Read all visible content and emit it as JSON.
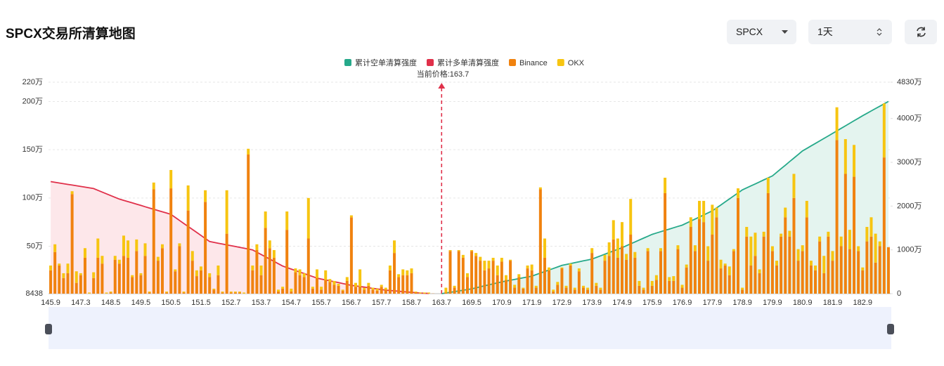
{
  "header": {
    "title": "SPCX交易所清算地图",
    "symbol_select": "SPCX",
    "range_select": "1天"
  },
  "chart_data": {
    "type": "bar",
    "stacked": true,
    "grid": true,
    "current_price": {
      "label": "当前价格:163.7",
      "value": 163.7
    },
    "categories": [
      "145.9",
      null,
      null,
      null,
      null,
      null,
      null,
      "147.3",
      null,
      null,
      null,
      null,
      null,
      null,
      "148.5",
      null,
      null,
      null,
      null,
      null,
      null,
      "149.5",
      null,
      null,
      null,
      null,
      null,
      null,
      "150.5",
      null,
      null,
      null,
      null,
      null,
      null,
      "151.5",
      null,
      null,
      null,
      null,
      null,
      null,
      "152.7",
      null,
      null,
      null,
      null,
      null,
      null,
      "153.7",
      null,
      null,
      null,
      null,
      null,
      null,
      "154.7",
      null,
      null,
      null,
      null,
      null,
      null,
      "155.7",
      null,
      null,
      null,
      null,
      null,
      null,
      "156.7",
      null,
      null,
      null,
      null,
      null,
      null,
      "157.7",
      null,
      null,
      null,
      null,
      null,
      null,
      "158.7",
      null,
      null,
      null,
      null,
      null,
      null,
      "163.7",
      null,
      null,
      null,
      null,
      null,
      null,
      "169.5",
      null,
      null,
      null,
      null,
      null,
      null,
      "170.9",
      null,
      null,
      null,
      null,
      null,
      null,
      "171.9",
      null,
      null,
      null,
      null,
      null,
      null,
      "172.9",
      null,
      null,
      null,
      null,
      null,
      null,
      "173.9",
      null,
      null,
      null,
      null,
      null,
      null,
      "174.9",
      null,
      null,
      null,
      null,
      null,
      null,
      "175.9",
      null,
      null,
      null,
      null,
      null,
      null,
      "176.9",
      null,
      null,
      null,
      null,
      null,
      null,
      "177.9",
      null,
      null,
      null,
      null,
      null,
      null,
      "178.9",
      null,
      null,
      null,
      null,
      null,
      null,
      "179.9",
      null,
      null,
      null,
      null,
      null,
      null,
      "180.9",
      null,
      null,
      null,
      null,
      null,
      null,
      "181.9",
      null,
      null,
      null,
      null,
      null,
      null,
      "182.9",
      null,
      null,
      null,
      null,
      null,
      null
    ],
    "ylim": [
      8438,
      2200000
    ],
    "yticks": [
      {
        "value": 8438,
        "label": "8438"
      },
      {
        "value": 500000,
        "label": "50万"
      },
      {
        "value": 1000000,
        "label": "100万"
      },
      {
        "value": 1500000,
        "label": "150万"
      },
      {
        "value": 2000000,
        "label": "200万"
      },
      {
        "value": 2200000,
        "label": "220万"
      }
    ],
    "y2lim": [
      0,
      48300000
    ],
    "y2ticks": [
      0,
      {
        "value": 10000000,
        "label": "1000万"
      },
      {
        "value": 20000000,
        "label": "2000万"
      },
      {
        "value": 30000000,
        "label": "3000万"
      },
      {
        "value": 40000000,
        "label": "4000万"
      },
      {
        "value": 48300000,
        "label": "4830万"
      }
    ],
    "series": [
      {
        "name": "累计空单清算强度",
        "type": "line",
        "axis": "y2",
        "color": "#26a98a",
        "area_color": "#e4f4ef",
        "values": [
          null,
          null,
          null,
          null,
          null,
          null,
          null,
          null,
          null,
          null,
          null,
          null,
          null,
          null,
          null,
          null,
          null,
          null,
          null,
          null,
          null,
          null,
          null,
          null,
          null,
          null,
          null,
          null,
          null,
          null,
          null,
          null,
          null,
          null,
          null,
          null,
          null,
          null,
          null,
          null,
          null,
          null,
          null,
          null,
          null,
          null,
          null,
          null,
          null,
          null,
          null,
          null,
          null,
          null,
          null,
          null,
          null,
          null,
          null,
          null,
          null,
          null,
          null,
          null,
          null,
          null,
          null,
          null,
          null,
          null,
          null,
          null,
          null,
          null,
          null,
          null,
          null,
          null,
          null,
          null,
          null,
          null,
          null,
          null,
          null,
          null,
          null,
          null,
          null,
          null,
          null,
          0,
          160000,
          310000,
          470000,
          630000,
          790000,
          940000,
          1100000,
          1330000,
          1560000,
          1790000,
          2010000,
          2240000,
          2470000,
          2700000,
          2890000,
          3070000,
          3260000,
          3440000,
          3630000,
          3810000,
          4000000,
          4350000,
          4700000,
          5050000,
          5400000,
          5750000,
          6100000,
          6450000,
          6660000,
          6860000,
          7070000,
          7280000,
          7490000,
          7690000,
          7900000,
          8270000,
          8640000,
          9010000,
          9390000,
          9760000,
          10130000,
          10500000,
          10940000,
          11370000,
          11810000,
          12240000,
          12680000,
          13110000,
          13550000,
          13850000,
          14150000,
          14450000,
          14750000,
          15050000,
          15350000,
          15650000,
          16110000,
          16580000,
          17040000,
          17510000,
          17970000,
          18440000,
          18900000,
          19590000,
          20270000,
          20960000,
          21640000,
          22330000,
          23010000,
          23700000,
          24160000,
          24610000,
          25070000,
          25530000,
          25990000,
          26440000,
          26900000,
          27710000,
          28530000,
          29340000,
          30160000,
          30970000,
          31790000,
          32600000,
          33170000,
          33740000,
          34310000,
          34890000,
          35460000,
          36030000,
          36600000,
          37180000,
          37760000,
          38340000,
          38910000,
          39490000,
          40070000,
          40650000,
          41190000,
          41730000,
          42280000,
          42820000,
          43360000,
          43900000
        ]
      },
      {
        "name": "累计多单清算强度",
        "type": "line",
        "axis": "y2",
        "color": "#e0304a",
        "area_color": "#fde7ea",
        "values": [
          25600000,
          25440000,
          25280000,
          25120000,
          24960000,
          24800000,
          24640000,
          24480000,
          24320000,
          24160000,
          24000000,
          23600000,
          23200000,
          22800000,
          22400000,
          22000000,
          21600000,
          21310000,
          21020000,
          20730000,
          20440000,
          20150000,
          19850000,
          19560000,
          19270000,
          18980000,
          18690000,
          18400000,
          18100000,
          17410000,
          16720000,
          16030000,
          15340000,
          14660000,
          13970000,
          13280000,
          12590000,
          11900000,
          11710000,
          11520000,
          11330000,
          11140000,
          10950000,
          10760000,
          10570000,
          10380000,
          10190000,
          10000000,
          9470000,
          8940000,
          8410000,
          7890000,
          7360000,
          6830000,
          6300000,
          5960000,
          5620000,
          5270000,
          4930000,
          4590000,
          4240000,
          3900000,
          3550000,
          3340000,
          3140000,
          2930000,
          2720000,
          2520000,
          2310000,
          2110000,
          1900000,
          1760000,
          1630000,
          1490000,
          1350000,
          1210000,
          1080000,
          940000,
          800000,
          720000,
          640000,
          560000,
          470000,
          390000,
          310000,
          230000,
          150000,
          100000,
          50000,
          null,
          null,
          null,
          null,
          null,
          null,
          null,
          null,
          null,
          null,
          null,
          null,
          null,
          null,
          null,
          null,
          null,
          null,
          null,
          null,
          null,
          null,
          null,
          null,
          null,
          null,
          null,
          null,
          null,
          null,
          null,
          null,
          null,
          null,
          null,
          null,
          null,
          null,
          null,
          null,
          null,
          null,
          null,
          null,
          null,
          null,
          null,
          null,
          null,
          null,
          null,
          null,
          null,
          null,
          null,
          null,
          null,
          null,
          null,
          null,
          null,
          null,
          null,
          null,
          null,
          null,
          null,
          null,
          null,
          null,
          null,
          null,
          null,
          null,
          null,
          null,
          null,
          null,
          null,
          null,
          null,
          null,
          null,
          null,
          null,
          null,
          null,
          null,
          null,
          null,
          null,
          null,
          null,
          null,
          null,
          null,
          null,
          null,
          null,
          null,
          null,
          null,
          null,
          null,
          null,
          null,
          null
        ]
      },
      {
        "name": "Binance",
        "type": "bar",
        "color": "#f0820f",
        "values": [
          250000,
          440000,
          300000,
          170000,
          220000,
          1040000,
          120000,
          200000,
          380000,
          10000,
          170000,
          380000,
          320000,
          10000,
          20000,
          360000,
          320000,
          400000,
          380000,
          180000,
          450000,
          200000,
          400000,
          20000,
          1090000,
          350000,
          480000,
          20000,
          1100000,
          240000,
          500000,
          20000,
          870000,
          350000,
          190000,
          250000,
          960000,
          180000,
          50000,
          200000,
          20000,
          630000,
          20000,
          20000,
          20000,
          10000,
          1450000,
          250000,
          460000,
          200000,
          690000,
          480000,
          380000,
          30000,
          60000,
          670000,
          30000,
          230000,
          200000,
          180000,
          580000,
          60000,
          170000,
          50000,
          150000,
          130000,
          100000,
          90000,
          40000,
          140000,
          800000,
          80000,
          80000,
          50000,
          90000,
          50000,
          40000,
          80000,
          50000,
          250000,
          430000,
          180000,
          200000,
          200000,
          220000,
          20000,
          10000,
          10000,
          10000,
          10000,
          0,
          0,
          20000,
          450000,
          70000,
          450000,
          380000,
          180000,
          450000,
          400000,
          350000,
          250000,
          270000,
          350000,
          200000,
          340000,
          150000,
          350000,
          70000,
          180000,
          60000,
          270000,
          250000,
          70000,
          1090000,
          380000,
          250000,
          30000,
          100000,
          270000,
          70000,
          300000,
          50000,
          240000,
          70000,
          50000,
          430000,
          90000,
          50000,
          350000,
          400000,
          570000,
          380000,
          500000,
          360000,
          620000,
          380000,
          90000,
          50000,
          450000,
          90000,
          150000,
          450000,
          1050000,
          140000,
          140000,
          470000,
          70000,
          280000,
          700000,
          450000,
          780000,
          750000,
          350000,
          620000,
          800000,
          270000,
          300000,
          200000,
          450000,
          1000000,
          50000,
          600000,
          300000,
          400000,
          220000,
          600000,
          1050000,
          450000,
          300000,
          600000,
          800000,
          600000,
          1000000,
          350000,
          450000,
          800000,
          300000,
          250000,
          550000,
          220000,
          600000,
          350000,
          1600000,
          500000,
          1250000,
          470000,
          1220000,
          450000,
          250000,
          550000,
          600000,
          330000,
          500000,
          1420000,
          490000
        ]
      },
      {
        "name": "OKX",
        "type": "bar",
        "color": "#f7c511",
        "values": [
          50000,
          80000,
          20000,
          50000,
          100000,
          30000,
          120000,
          20000,
          100000,
          10000,
          60000,
          200000,
          80000,
          10000,
          10000,
          40000,
          40000,
          210000,
          180000,
          20000,
          120000,
          20000,
          130000,
          10000,
          70000,
          40000,
          40000,
          10000,
          190000,
          20000,
          30000,
          10000,
          260000,
          100000,
          60000,
          40000,
          120000,
          40000,
          10000,
          100000,
          10000,
          450000,
          10000,
          10000,
          10000,
          10000,
          60000,
          50000,
          60000,
          100000,
          170000,
          80000,
          80000,
          20000,
          20000,
          190000,
          30000,
          40000,
          60000,
          40000,
          420000,
          20000,
          90000,
          30000,
          100000,
          30000,
          40000,
          20000,
          10000,
          40000,
          20000,
          40000,
          180000,
          20000,
          30000,
          20000,
          20000,
          20000,
          20000,
          50000,
          130000,
          30000,
          60000,
          50000,
          50000,
          10000,
          10000,
          10000,
          10000,
          0,
          0,
          0,
          50000,
          10000,
          20000,
          10000,
          30000,
          40000,
          10000,
          30000,
          40000,
          100000,
          80000,
          30000,
          100000,
          40000,
          50000,
          10000,
          30000,
          30000,
          10000,
          30000,
          60000,
          20000,
          20000,
          200000,
          30000,
          20000,
          30000,
          10000,
          20000,
          20000,
          20000,
          30000,
          20000,
          20000,
          50000,
          30000,
          20000,
          60000,
          140000,
          200000,
          200000,
          250000,
          60000,
          370000,
          60000,
          50000,
          20000,
          30000,
          50000,
          50000,
          30000,
          160000,
          40000,
          50000,
          40000,
          30000,
          30000,
          100000,
          60000,
          190000,
          220000,
          150000,
          310000,
          100000,
          90000,
          20000,
          90000,
          20000,
          100000,
          20000,
          100000,
          300000,
          240000,
          40000,
          50000,
          160000,
          50000,
          50000,
          30000,
          100000,
          60000,
          250000,
          120000,
          60000,
          170000,
          50000,
          50000,
          50000,
          180000,
          50000,
          100000,
          340000,
          100000,
          360000,
          200000,
          330000,
          50000,
          30000,
          150000,
          200000,
          300000,
          50000,
          560000,
          0
        ]
      }
    ]
  }
}
